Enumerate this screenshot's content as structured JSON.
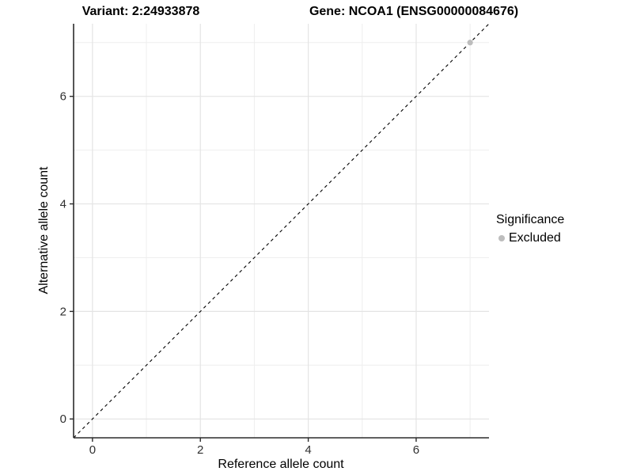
{
  "chart_data": {
    "type": "scatter",
    "title_left": "Variant: 2:24933878",
    "title_right": "Gene: NCOA1 (ENSG00000084676)",
    "xlabel": "Reference allele count",
    "ylabel": "Alternative allele count",
    "xlim": [
      -0.35,
      7.35
    ],
    "ylim": [
      -0.35,
      7.35
    ],
    "x_major_ticks": [
      0,
      2,
      4,
      6
    ],
    "y_major_ticks": [
      0,
      2,
      4,
      6
    ],
    "x_minor_gridlines": [
      1,
      3,
      5,
      7
    ],
    "y_minor_gridlines": [
      1,
      3,
      5,
      7
    ],
    "grid": true,
    "reference_line": {
      "type": "identity",
      "style": "dashed",
      "from": [
        -0.35,
        -0.35
      ],
      "to": [
        7.35,
        7.35
      ]
    },
    "series": [
      {
        "name": "Excluded",
        "color": "#bdbdbd",
        "points": [
          {
            "x": 7,
            "y": 7
          }
        ]
      }
    ],
    "legend": {
      "position": "right",
      "title": "Significance",
      "items": [
        {
          "label": "Excluded",
          "color": "#bdbdbd"
        }
      ]
    }
  },
  "colors": {
    "background": "#ffffff",
    "grid_major": "#e4e4e4",
    "grid_minor": "#eeeeee",
    "axis_line": "#2b2b2b",
    "tick_text": "#303030",
    "title_text": "#000000",
    "reference_line": "#000000",
    "point": "#bdbdbd"
  }
}
